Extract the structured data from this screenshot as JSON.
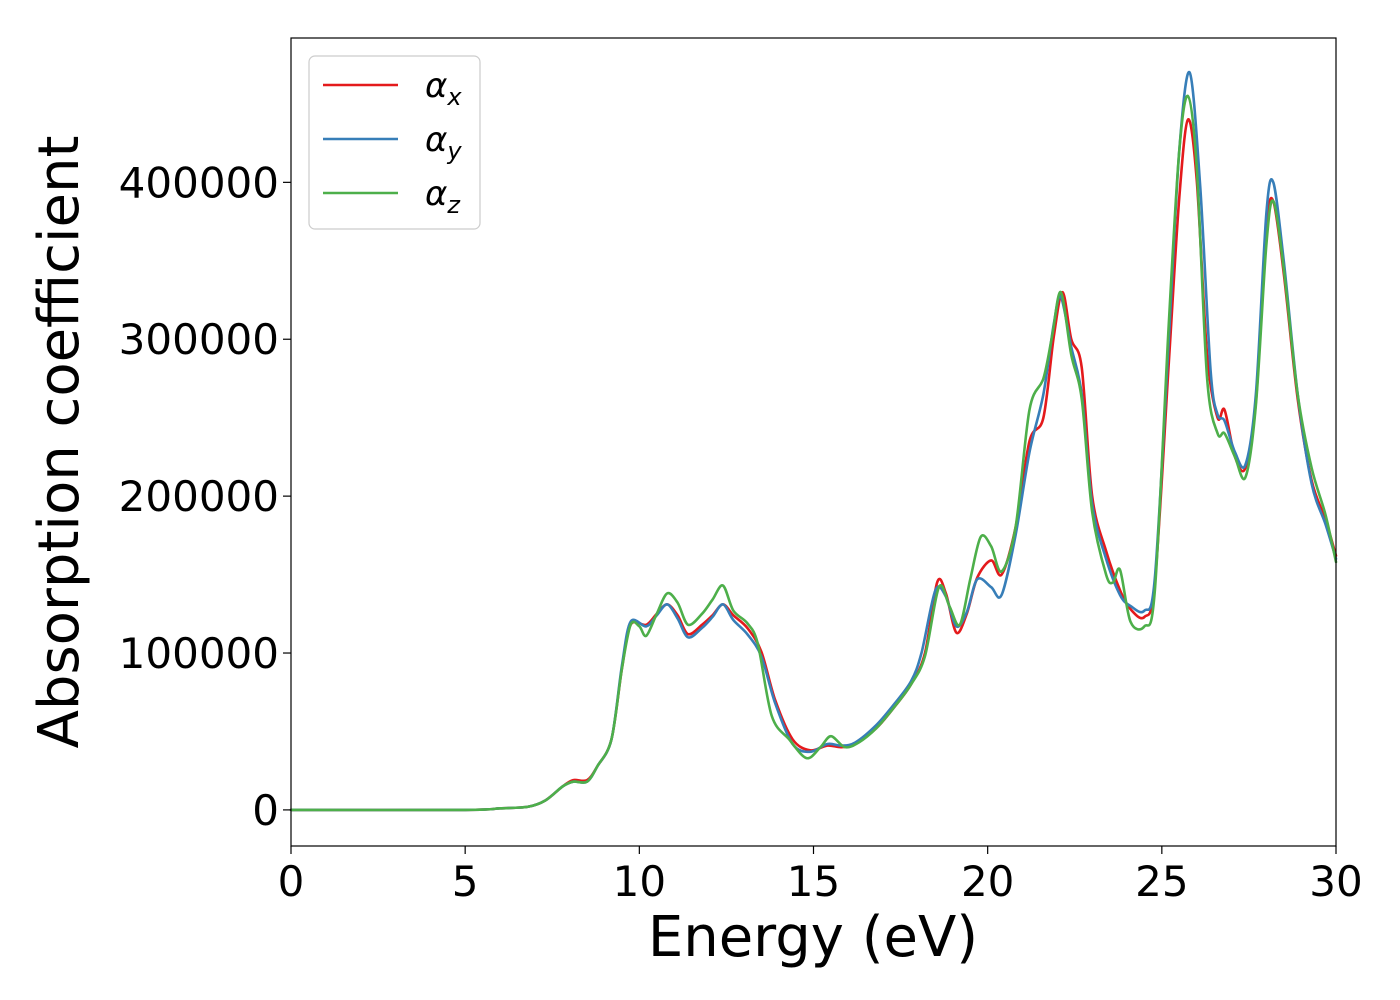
{
  "chart_data": {
    "type": "line",
    "xlabel": "Energy (eV)",
    "ylabel": "Absorption coefficient",
    "xlim": [
      0,
      30
    ],
    "ylim": [
      -23000,
      492000
    ],
    "x_ticks": [
      0,
      5,
      10,
      15,
      20,
      25,
      30
    ],
    "y_ticks": [
      0,
      100000,
      200000,
      300000,
      400000
    ],
    "grid": false,
    "legend_position": "top-left",
    "series": [
      {
        "name": "α_x",
        "label_main": "α",
        "label_sub": "x",
        "color": "#e41a1c",
        "points": [
          [
            0,
            0
          ],
          [
            5,
            0
          ],
          [
            6,
            1000
          ],
          [
            6.8,
            2000
          ],
          [
            7.3,
            6000
          ],
          [
            7.8,
            15000
          ],
          [
            8.1,
            19000
          ],
          [
            8.5,
            19000
          ],
          [
            8.8,
            28000
          ],
          [
            9.2,
            45000
          ],
          [
            9.5,
            90000
          ],
          [
            9.75,
            118000
          ],
          [
            10.2,
            118000
          ],
          [
            10.5,
            125000
          ],
          [
            10.8,
            131000
          ],
          [
            11.1,
            124000
          ],
          [
            11.4,
            112000
          ],
          [
            11.8,
            118000
          ],
          [
            12.1,
            124000
          ],
          [
            12.4,
            131000
          ],
          [
            12.7,
            124000
          ],
          [
            13.1,
            116000
          ],
          [
            13.5,
            101000
          ],
          [
            13.9,
            70000
          ],
          [
            14.4,
            45000
          ],
          [
            14.9,
            38000
          ],
          [
            15.4,
            41000
          ],
          [
            15.8,
            40000
          ],
          [
            16.2,
            42000
          ],
          [
            16.8,
            52000
          ],
          [
            17.3,
            65000
          ],
          [
            17.8,
            80000
          ],
          [
            18.2,
            100000
          ],
          [
            18.55,
            145000
          ],
          [
            18.8,
            138000
          ],
          [
            19.1,
            113000
          ],
          [
            19.4,
            125000
          ],
          [
            19.7,
            148000
          ],
          [
            20.1,
            159000
          ],
          [
            20.4,
            150000
          ],
          [
            20.8,
            180000
          ],
          [
            21.2,
            235000
          ],
          [
            21.6,
            250000
          ],
          [
            21.9,
            302000
          ],
          [
            22.15,
            330000
          ],
          [
            22.4,
            300000
          ],
          [
            22.7,
            282000
          ],
          [
            23.0,
            200000
          ],
          [
            23.4,
            165000
          ],
          [
            23.8,
            140000
          ],
          [
            24.1,
            128000
          ],
          [
            24.5,
            123000
          ],
          [
            24.8,
            145000
          ],
          [
            25.2,
            285000
          ],
          [
            25.5,
            390000
          ],
          [
            25.75,
            440000
          ],
          [
            26.0,
            402000
          ],
          [
            26.3,
            290000
          ],
          [
            26.6,
            250000
          ],
          [
            26.8,
            255000
          ],
          [
            27.1,
            225000
          ],
          [
            27.4,
            218000
          ],
          [
            27.7,
            260000
          ],
          [
            28.0,
            370000
          ],
          [
            28.2,
            388000
          ],
          [
            28.5,
            342000
          ],
          [
            28.9,
            262000
          ],
          [
            29.3,
            210000
          ],
          [
            29.7,
            185000
          ],
          [
            30,
            162000
          ]
        ]
      },
      {
        "name": "α_y",
        "label_main": "α",
        "label_sub": "y",
        "color": "#377eb8",
        "points": [
          [
            0,
            0
          ],
          [
            5,
            0
          ],
          [
            6,
            1000
          ],
          [
            6.8,
            2000
          ],
          [
            7.3,
            6000
          ],
          [
            7.8,
            15000
          ],
          [
            8.1,
            18000
          ],
          [
            8.5,
            18000
          ],
          [
            8.8,
            28000
          ],
          [
            9.2,
            45000
          ],
          [
            9.5,
            92000
          ],
          [
            9.75,
            120000
          ],
          [
            10.2,
            117000
          ],
          [
            10.5,
            124000
          ],
          [
            10.8,
            131000
          ],
          [
            11.1,
            122000
          ],
          [
            11.4,
            110000
          ],
          [
            11.8,
            116000
          ],
          [
            12.1,
            123000
          ],
          [
            12.4,
            131000
          ],
          [
            12.7,
            121000
          ],
          [
            13.1,
            112000
          ],
          [
            13.5,
            98000
          ],
          [
            13.9,
            68000
          ],
          [
            14.4,
            42000
          ],
          [
            14.9,
            37000
          ],
          [
            15.4,
            42000
          ],
          [
            15.8,
            41000
          ],
          [
            16.2,
            43000
          ],
          [
            16.8,
            54000
          ],
          [
            17.3,
            67000
          ],
          [
            17.8,
            82000
          ],
          [
            18.1,
            100000
          ],
          [
            18.5,
            140000
          ],
          [
            18.8,
            136000
          ],
          [
            19.1,
            117000
          ],
          [
            19.4,
            126000
          ],
          [
            19.7,
            147000
          ],
          [
            20.1,
            142000
          ],
          [
            20.4,
            137000
          ],
          [
            20.8,
            175000
          ],
          [
            21.2,
            228000
          ],
          [
            21.6,
            265000
          ],
          [
            21.9,
            310000
          ],
          [
            22.1,
            327000
          ],
          [
            22.4,
            295000
          ],
          [
            22.7,
            265000
          ],
          [
            23.0,
            195000
          ],
          [
            23.4,
            160000
          ],
          [
            23.8,
            137000
          ],
          [
            24.1,
            130000
          ],
          [
            24.5,
            127000
          ],
          [
            24.8,
            148000
          ],
          [
            25.2,
            300000
          ],
          [
            25.5,
            420000
          ],
          [
            25.8,
            470000
          ],
          [
            26.1,
            398000
          ],
          [
            26.4,
            280000
          ],
          [
            26.6,
            252000
          ],
          [
            26.8,
            248000
          ],
          [
            27.1,
            228000
          ],
          [
            27.4,
            220000
          ],
          [
            27.7,
            265000
          ],
          [
            28.0,
            380000
          ],
          [
            28.2,
            400000
          ],
          [
            28.5,
            350000
          ],
          [
            28.9,
            265000
          ],
          [
            29.3,
            208000
          ],
          [
            29.7,
            182000
          ],
          [
            30,
            160000
          ]
        ]
      },
      {
        "name": "α_z",
        "label_main": "α",
        "label_sub": "z",
        "color": "#4daf4a",
        "points": [
          [
            0,
            0
          ],
          [
            5,
            0
          ],
          [
            6,
            1000
          ],
          [
            6.8,
            2000
          ],
          [
            7.3,
            6000
          ],
          [
            7.8,
            15000
          ],
          [
            8.1,
            18000
          ],
          [
            8.5,
            18000
          ],
          [
            8.8,
            28000
          ],
          [
            9.2,
            45000
          ],
          [
            9.5,
            90000
          ],
          [
            9.75,
            118000
          ],
          [
            10.0,
            117000
          ],
          [
            10.2,
            111000
          ],
          [
            10.5,
            125000
          ],
          [
            10.8,
            138000
          ],
          [
            11.1,
            132000
          ],
          [
            11.4,
            118000
          ],
          [
            11.8,
            125000
          ],
          [
            12.1,
            134000
          ],
          [
            12.4,
            143000
          ],
          [
            12.7,
            127000
          ],
          [
            13.1,
            119000
          ],
          [
            13.4,
            106000
          ],
          [
            13.8,
            60000
          ],
          [
            14.3,
            45000
          ],
          [
            14.8,
            33000
          ],
          [
            15.2,
            40000
          ],
          [
            15.5,
            47000
          ],
          [
            15.9,
            40000
          ],
          [
            16.3,
            43000
          ],
          [
            16.8,
            52000
          ],
          [
            17.3,
            65000
          ],
          [
            17.8,
            80000
          ],
          [
            18.2,
            98000
          ],
          [
            18.6,
            142000
          ],
          [
            18.9,
            130000
          ],
          [
            19.2,
            118000
          ],
          [
            19.5,
            147000
          ],
          [
            19.8,
            174000
          ],
          [
            20.1,
            168000
          ],
          [
            20.4,
            152000
          ],
          [
            20.8,
            180000
          ],
          [
            21.2,
            255000
          ],
          [
            21.6,
            275000
          ],
          [
            21.85,
            302000
          ],
          [
            22.1,
            330000
          ],
          [
            22.4,
            290000
          ],
          [
            22.7,
            262000
          ],
          [
            23.0,
            190000
          ],
          [
            23.4,
            150000
          ],
          [
            23.6,
            145000
          ],
          [
            23.8,
            153000
          ],
          [
            24.1,
            120000
          ],
          [
            24.5,
            117000
          ],
          [
            24.8,
            140000
          ],
          [
            25.2,
            310000
          ],
          [
            25.5,
            420000
          ],
          [
            25.75,
            455000
          ],
          [
            26.0,
            410000
          ],
          [
            26.3,
            275000
          ],
          [
            26.6,
            240000
          ],
          [
            26.8,
            240000
          ],
          [
            27.1,
            225000
          ],
          [
            27.4,
            212000
          ],
          [
            27.7,
            258000
          ],
          [
            28.0,
            360000
          ],
          [
            28.2,
            388000
          ],
          [
            28.5,
            345000
          ],
          [
            28.9,
            265000
          ],
          [
            29.3,
            218000
          ],
          [
            29.7,
            188000
          ],
          [
            30,
            158000
          ]
        ]
      }
    ]
  }
}
